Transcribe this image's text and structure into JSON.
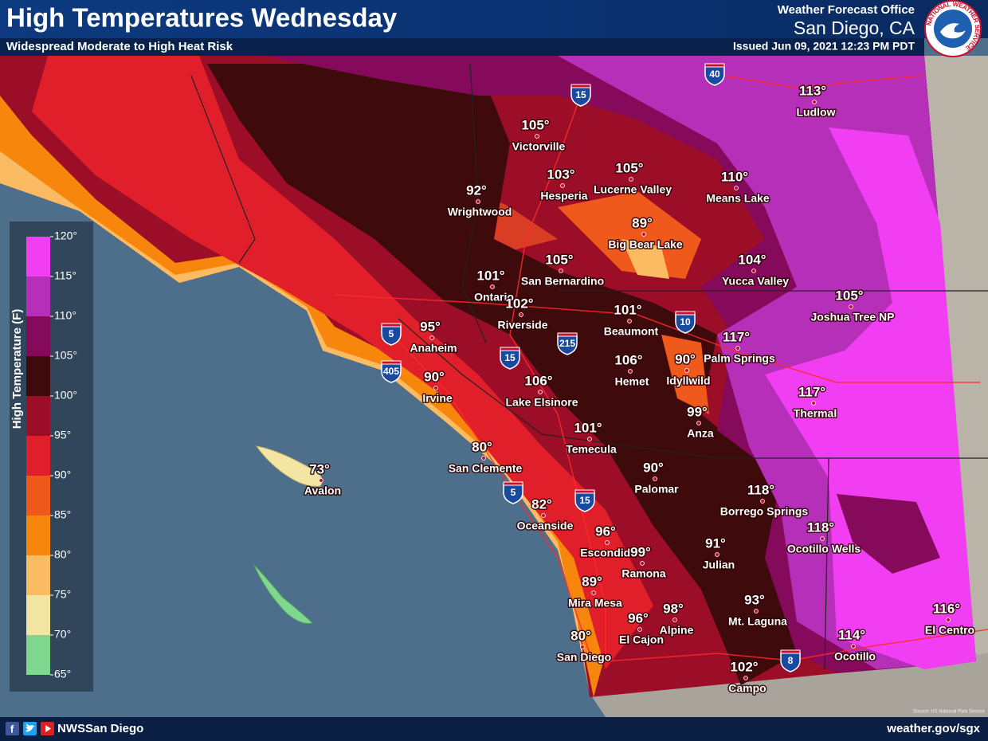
{
  "header": {
    "title": "High Temperatures Wednesday",
    "subtitle": "Widespread Moderate to High Heat Risk",
    "office_label": "Weather Forecast Office",
    "office_name": "San Diego, CA",
    "issued": "Issued Jun 09, 2021 12:23 PM PDT",
    "logo_text": "NATIONAL WEATHER SERVICE"
  },
  "legend": {
    "title": "High Temperature (F)",
    "ticks": [
      "120°",
      "115°",
      "110°",
      "105°",
      "100°",
      "95°",
      "90°",
      "85°",
      "80°",
      "75°",
      "70°",
      "65°"
    ],
    "colors": [
      "#f23ef2",
      "#b52fb8",
      "#860a5c",
      "#3f0a0c",
      "#9c0d28",
      "#e01f2a",
      "#f0591c",
      "#f7870c",
      "#fbbb62",
      "#f3e6a2",
      "#7fd68f"
    ]
  },
  "cities": [
    {
      "name": "Ludlow",
      "temp": "113°"
    },
    {
      "name": "Victorville",
      "temp": "105°"
    },
    {
      "name": "Hesperia",
      "temp": "103°"
    },
    {
      "name": "Lucerne Valley",
      "temp": "105°"
    },
    {
      "name": "Means Lake",
      "temp": "110°"
    },
    {
      "name": "Wrightwood",
      "temp": "92°"
    },
    {
      "name": "Big Bear Lake",
      "temp": "89°"
    },
    {
      "name": "San Bernardino",
      "temp": "105°"
    },
    {
      "name": "Yucca Valley",
      "temp": "104°"
    },
    {
      "name": "Ontario",
      "temp": "101°"
    },
    {
      "name": "Riverside",
      "temp": "102°"
    },
    {
      "name": "Beaumont",
      "temp": "101°"
    },
    {
      "name": "Joshua Tree NP",
      "temp": "105°"
    },
    {
      "name": "Anaheim",
      "temp": "95°"
    },
    {
      "name": "Palm Springs",
      "temp": "117°"
    },
    {
      "name": "Hemet",
      "temp": "106°"
    },
    {
      "name": "Idyllwild",
      "temp": "90°"
    },
    {
      "name": "Irvine",
      "temp": "90°"
    },
    {
      "name": "Lake Elsinore",
      "temp": "106°"
    },
    {
      "name": "Thermal",
      "temp": "117°"
    },
    {
      "name": "Anza",
      "temp": "99°"
    },
    {
      "name": "Temecula",
      "temp": "101°"
    },
    {
      "name": "San Clemente",
      "temp": "80°"
    },
    {
      "name": "Avalon",
      "temp": "73°"
    },
    {
      "name": "Palomar",
      "temp": "90°"
    },
    {
      "name": "Borrego Springs",
      "temp": "118°"
    },
    {
      "name": "Oceanside",
      "temp": "82°"
    },
    {
      "name": "Ocotillo Wells",
      "temp": "118°"
    },
    {
      "name": "Escondido",
      "temp": "96°"
    },
    {
      "name": "Ramona",
      "temp": "99°"
    },
    {
      "name": "Julian",
      "temp": "91°"
    },
    {
      "name": "Mira Mesa",
      "temp": "89°"
    },
    {
      "name": "Mt. Laguna",
      "temp": "93°"
    },
    {
      "name": "Alpine",
      "temp": "98°"
    },
    {
      "name": "El Cajon",
      "temp": "96°"
    },
    {
      "name": "El Centro",
      "temp": "116°"
    },
    {
      "name": "Ocotillo",
      "temp": "114°"
    },
    {
      "name": "San Diego",
      "temp": "80°"
    },
    {
      "name": "Campo",
      "temp": "102°"
    }
  ],
  "highways": [
    "40",
    "15",
    "5",
    "405",
    "15",
    "215",
    "10",
    "5",
    "15",
    "8"
  ],
  "source": "Source: US National Park Service",
  "footer": {
    "handle": "NWSSan Diego",
    "url": "weather.gov/sgx"
  }
}
